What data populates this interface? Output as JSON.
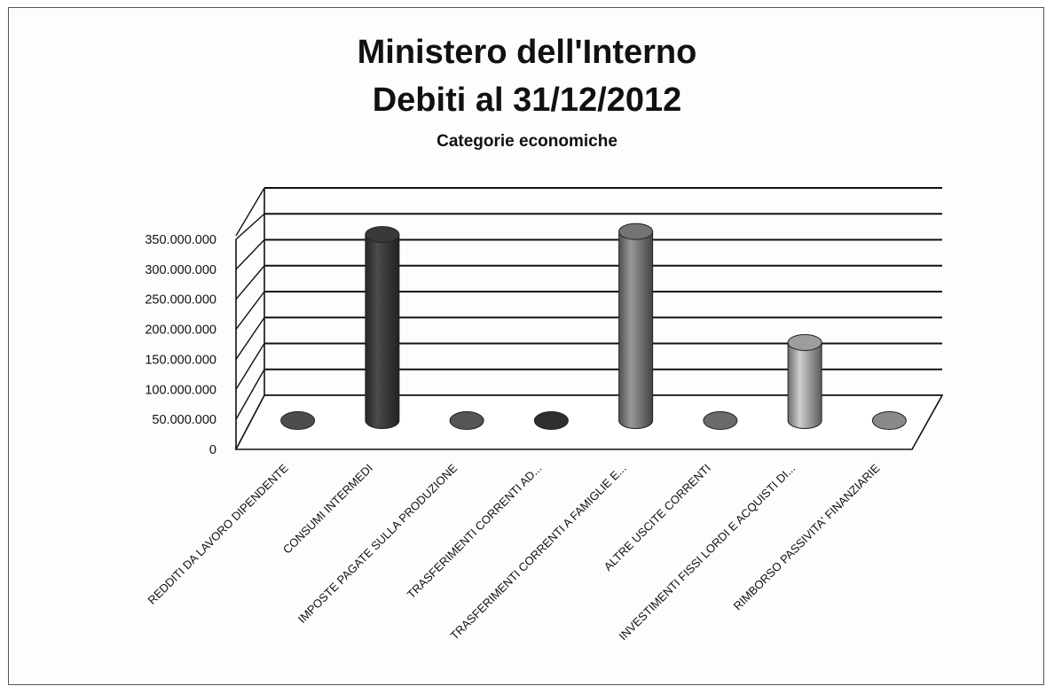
{
  "chart_data": {
    "type": "bar",
    "style": "3d-cylinder",
    "title_lines": [
      "Ministero dell'Interno",
      "Debiti al 31/12/2012"
    ],
    "subtitle": "Categorie economiche",
    "xlabel": "",
    "ylabel": "",
    "ylim": [
      0,
      350000000
    ],
    "y_ticks": [
      "0",
      "50.000.000",
      "100.000.000",
      "150.000.000",
      "200.000.000",
      "250.000.000",
      "300.000.000",
      "350.000.000"
    ],
    "grid": true,
    "legend": "none",
    "categories": [
      "REDDITI DA LAVORO DIPENDENTE",
      "CONSUMI INTERMEDI",
      "IMPOSTE PAGATE SULLA PRODUZIONE",
      "TRASFERIMENTI CORRENTI AD...",
      "TRASFERIMENTI CORRENTI A FAMIGLIE E...",
      "ALTRE USCITE CORRENTI",
      "INVESTIMENTI FISSI LORDI E ACQUISTI DI...",
      "RIMBORSO PASSIVITA' FINANZIARIE"
    ],
    "values": [
      0,
      310000000,
      0,
      0,
      315000000,
      0,
      130000000,
      0
    ],
    "colors": [
      "#4d4d4d",
      "#3c3c3c",
      "#555555",
      "#2f2f2f",
      "#7a7a7a",
      "#6a6a6a",
      "#a5a5a5",
      "#8a8a8a"
    ]
  }
}
